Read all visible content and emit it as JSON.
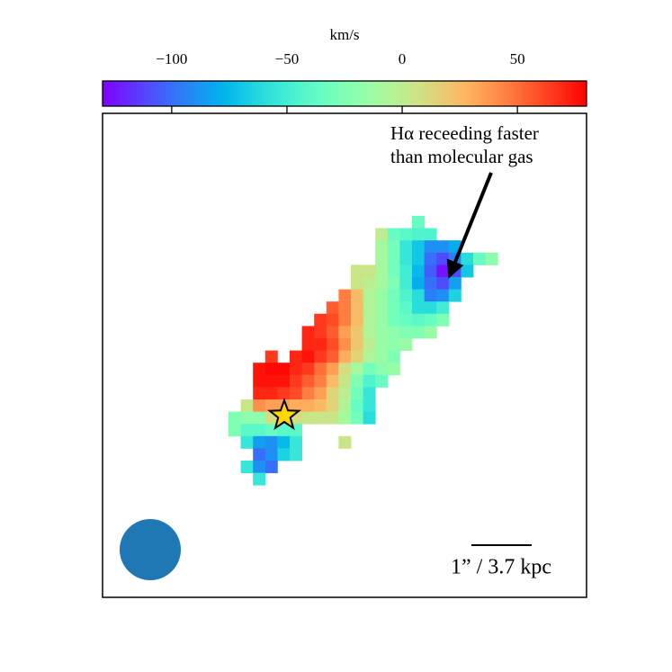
{
  "chart_data": {
    "type": "heatmap",
    "colorbar_label": "km/s",
    "colormap": "rainbow",
    "clim": [
      -130,
      80
    ],
    "cticks": [
      {
        "value": -100,
        "label": "−100"
      },
      {
        "value": -50,
        "label": "−50"
      },
      0,
      50
    ],
    "annotation": [
      "Hα receeding faster",
      "than molecular gas"
    ],
    "scale_label": "1” / 3.7 kpc",
    "z": [
      [
        null,
        null,
        null,
        null,
        null,
        null,
        null,
        null,
        null,
        null,
        null,
        null,
        null,
        null,
        null,
        -35,
        null,
        null,
        null,
        null,
        null,
        null
      ],
      [
        null,
        null,
        null,
        null,
        null,
        null,
        null,
        null,
        null,
        null,
        null,
        null,
        0,
        -35,
        -40,
        -45,
        -45,
        null,
        null,
        null,
        null,
        null
      ],
      [
        null,
        null,
        null,
        null,
        null,
        null,
        null,
        null,
        null,
        null,
        null,
        null,
        -10,
        -30,
        -55,
        -70,
        -90,
        -90,
        -80,
        null,
        null,
        null
      ],
      [
        null,
        null,
        null,
        null,
        null,
        null,
        null,
        null,
        null,
        null,
        null,
        null,
        -10,
        -30,
        -55,
        -70,
        -100,
        -110,
        -95,
        -60,
        -35,
        -20
      ],
      [
        null,
        null,
        null,
        null,
        null,
        null,
        null,
        null,
        null,
        null,
        5,
        5,
        -10,
        -30,
        -50,
        -75,
        -105,
        -125,
        -110,
        -70,
        null,
        null
      ],
      [
        null,
        null,
        null,
        null,
        null,
        null,
        null,
        null,
        null,
        null,
        5,
        0,
        -10,
        -25,
        -50,
        -80,
        -100,
        -110,
        -85,
        null,
        null,
        null
      ],
      [
        null,
        null,
        null,
        null,
        null,
        null,
        null,
        null,
        null,
        45,
        25,
        -5,
        -15,
        -30,
        -45,
        -60,
        -95,
        -90,
        -65,
        null,
        null,
        null
      ],
      [
        null,
        null,
        null,
        null,
        null,
        null,
        null,
        null,
        55,
        45,
        25,
        -5,
        -15,
        -30,
        -40,
        -60,
        -60,
        -50,
        null,
        null,
        null,
        null
      ],
      [
        null,
        null,
        null,
        null,
        null,
        null,
        null,
        65,
        60,
        45,
        25,
        -5,
        -15,
        -30,
        -35,
        -40,
        -35,
        -25,
        null,
        null,
        null,
        null
      ],
      [
        null,
        null,
        null,
        null,
        null,
        null,
        70,
        65,
        55,
        35,
        20,
        -5,
        -15,
        -20,
        -25,
        -25,
        -15,
        null,
        null,
        null,
        null,
        null
      ],
      [
        null,
        null,
        null,
        null,
        null,
        null,
        70,
        70,
        60,
        40,
        20,
        0,
        -15,
        -20,
        -15,
        null,
        null,
        null,
        null,
        null,
        null,
        null
      ],
      [
        null,
        null,
        null,
        65,
        null,
        70,
        75,
        65,
        55,
        30,
        15,
        -5,
        -15,
        -25,
        null,
        null,
        null,
        null,
        null,
        null,
        null,
        null
      ],
      [
        null,
        null,
        75,
        78,
        78,
        70,
        65,
        50,
        35,
        10,
        -10,
        -30,
        -20,
        -15,
        null,
        null,
        null,
        null,
        null,
        null,
        null,
        null
      ],
      [
        null,
        null,
        75,
        75,
        75,
        65,
        55,
        45,
        25,
        5,
        -25,
        -45,
        -35,
        null,
        null,
        null,
        null,
        null,
        null,
        null,
        null,
        null
      ],
      [
        null,
        null,
        70,
        70,
        65,
        60,
        45,
        35,
        15,
        0,
        -30,
        -55,
        null,
        null,
        null,
        null,
        null,
        null,
        null,
        null,
        null,
        null
      ],
      [
        null,
        5,
        40,
        35,
        35,
        30,
        30,
        25,
        15,
        -5,
        -35,
        -55,
        null,
        null,
        null,
        null,
        null,
        null,
        null,
        null,
        null,
        null
      ],
      [
        -25,
        -20,
        -20,
        10,
        10,
        10,
        5,
        5,
        5,
        -10,
        -30,
        -60,
        null,
        null,
        null,
        null,
        null,
        null,
        null,
        null,
        null,
        null
      ],
      [
        -25,
        -40,
        -40,
        -35,
        -40,
        -40,
        null,
        null,
        null,
        null,
        null,
        null,
        null,
        null,
        null,
        null,
        null,
        null,
        null,
        null,
        null,
        null
      ],
      [
        null,
        -55,
        -85,
        -90,
        -75,
        -55,
        null,
        null,
        null,
        5,
        null,
        null,
        null,
        null,
        null,
        null,
        null,
        null,
        null,
        null,
        null,
        null
      ],
      [
        null,
        null,
        -100,
        -90,
        -65,
        -55,
        null,
        null,
        null,
        null,
        null,
        null,
        null,
        null,
        null,
        null,
        null,
        null,
        null,
        null,
        null,
        null
      ],
      [
        null,
        -55,
        -90,
        -100,
        null,
        null,
        null,
        null,
        null,
        null,
        null,
        null,
        null,
        null,
        null,
        null,
        null,
        null,
        null,
        null,
        null,
        null
      ],
      [
        null,
        null,
        -55,
        null,
        null,
        null,
        null,
        null,
        null,
        null,
        null,
        null,
        null,
        null,
        null,
        null,
        null,
        null,
        null,
        null,
        null,
        null
      ]
    ]
  }
}
